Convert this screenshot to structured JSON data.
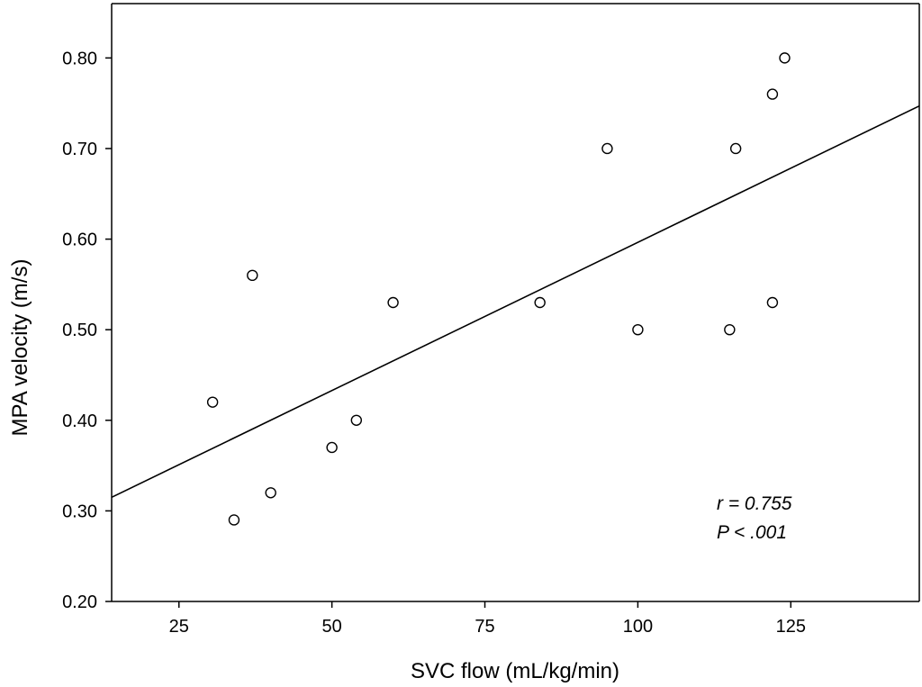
{
  "chart_data": {
    "type": "scatter",
    "xlabel": "SVC flow (mL/kg/min)",
    "ylabel": "MPA velocity (m/s)",
    "xlim": [
      14,
      146
    ],
    "ylim": [
      0.2,
      0.86
    ],
    "x_ticks": [
      25,
      50,
      75,
      100,
      125
    ],
    "x_tick_labels": [
      "25",
      "50",
      "75",
      "100",
      "125"
    ],
    "y_ticks": [
      0.2,
      0.3,
      0.4,
      0.5,
      0.6,
      0.7,
      0.8
    ],
    "y_tick_labels": [
      "0.20",
      "0.30",
      "0.40",
      "0.50",
      "0.60",
      "0.70",
      "0.80"
    ],
    "grid": false,
    "points": [
      {
        "x": 30.5,
        "y": 0.42
      },
      {
        "x": 34,
        "y": 0.29
      },
      {
        "x": 37,
        "y": 0.56
      },
      {
        "x": 40,
        "y": 0.32
      },
      {
        "x": 50,
        "y": 0.37
      },
      {
        "x": 54,
        "y": 0.4
      },
      {
        "x": 60,
        "y": 0.53
      },
      {
        "x": 84,
        "y": 0.53
      },
      {
        "x": 95,
        "y": 0.7
      },
      {
        "x": 100,
        "y": 0.5
      },
      {
        "x": 115,
        "y": 0.5
      },
      {
        "x": 116,
        "y": 0.7
      },
      {
        "x": 122,
        "y": 0.76
      },
      {
        "x": 122,
        "y": 0.53
      },
      {
        "x": 124,
        "y": 0.8
      }
    ],
    "regression_line": {
      "x0": 14,
      "y0": 0.315,
      "x1": 146,
      "y1": 0.747
    },
    "annotations": [
      "r = 0.755",
      "P < .001"
    ]
  }
}
